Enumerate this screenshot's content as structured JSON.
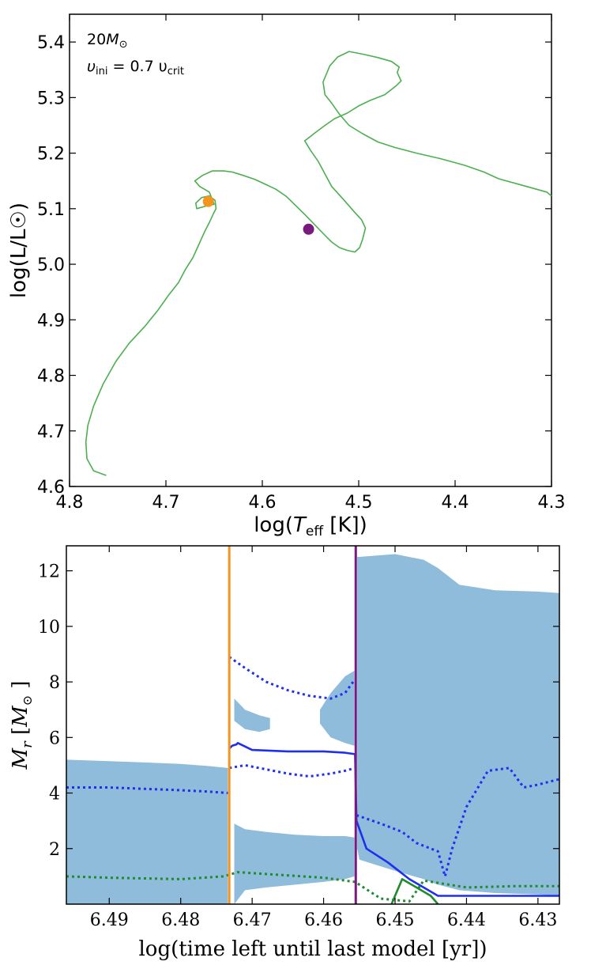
{
  "chart_data": [
    {
      "type": "line",
      "title": "",
      "annotation": {
        "mass": "20",
        "mass_unit": "M",
        "rotation_prefix": "υ",
        "rotation_sub": "ini",
        "rotation_mid": " = 0.7 υ",
        "rotation_sub2": "crit"
      },
      "xlabel": {
        "pre": "log(",
        "sym": "T",
        "sub": "eff",
        "post": " [K])"
      },
      "ylabel": "log(L/L☉)",
      "xlim": [
        4.8,
        4.3
      ],
      "ylim": [
        4.6,
        5.45
      ],
      "xticks": [
        4.8,
        4.7,
        4.6,
        4.5,
        4.4,
        4.3
      ],
      "xtick_labels": [
        "4.8",
        "4.7",
        "4.6",
        "4.5",
        "4.4",
        "4.3"
      ],
      "yticks": [
        4.6,
        4.7,
        4.8,
        4.9,
        5.0,
        5.1,
        5.2,
        5.3,
        5.4
      ],
      "ytick_labels": [
        "4.6",
        "4.7",
        "4.8",
        "4.9",
        "5.0",
        "5.1",
        "5.2",
        "5.3",
        "5.4"
      ],
      "series": [
        {
          "name": "track",
          "color": "#4caf50",
          "x": [
            4.762,
            4.775,
            4.782,
            4.783,
            4.781,
            4.775,
            4.765,
            4.752,
            4.738,
            4.722,
            4.708,
            4.697,
            4.687,
            4.68,
            4.672,
            4.666,
            4.66,
            4.655,
            4.651,
            4.648,
            4.649,
            4.655,
            4.663,
            4.669,
            4.668,
            4.66,
            4.65,
            4.655,
            4.665,
            4.67,
            4.662,
            4.652,
            4.64,
            4.631,
            4.62,
            4.608,
            4.597,
            4.586,
            4.575,
            4.565,
            4.555,
            4.545,
            4.535,
            4.528,
            4.52,
            4.512,
            4.504,
            4.499,
            4.496,
            4.493,
            4.497,
            4.505,
            4.515,
            4.528,
            4.542,
            4.55,
            4.556,
            4.545,
            4.535,
            4.525,
            4.512,
            4.5,
            4.488,
            4.473,
            4.462,
            4.456,
            4.46,
            4.458,
            4.466,
            4.48,
            4.495,
            4.51,
            4.522,
            4.53,
            4.537,
            4.535,
            4.528,
            4.52,
            4.51,
            4.496,
            4.48,
            4.462,
            4.44,
            4.415,
            4.39,
            4.37,
            4.355,
            4.33,
            4.305,
            4.3
          ],
          "y": [
            4.62,
            4.628,
            4.65,
            4.68,
            4.71,
            4.745,
            4.785,
            4.825,
            4.858,
            4.888,
            4.918,
            4.945,
            4.967,
            4.99,
            5.012,
            5.035,
            5.058,
            5.075,
            5.09,
            5.1,
            5.115,
            5.123,
            5.12,
            5.11,
            5.1,
            5.104,
            5.108,
            5.13,
            5.14,
            5.15,
            5.16,
            5.168,
            5.168,
            5.166,
            5.16,
            5.153,
            5.144,
            5.135,
            5.122,
            5.105,
            5.088,
            5.07,
            5.052,
            5.04,
            5.03,
            5.025,
            5.022,
            5.03,
            5.045,
            5.065,
            5.08,
            5.095,
            5.115,
            5.14,
            5.185,
            5.205,
            5.222,
            5.237,
            5.25,
            5.262,
            5.272,
            5.285,
            5.295,
            5.305,
            5.32,
            5.33,
            5.345,
            5.355,
            5.365,
            5.372,
            5.378,
            5.383,
            5.373,
            5.357,
            5.328,
            5.305,
            5.29,
            5.27,
            5.25,
            5.235,
            5.22,
            5.21,
            5.2,
            5.19,
            5.178,
            5.166,
            5.154,
            5.142,
            5.13,
            5.123
          ]
        }
      ],
      "markers": [
        {
          "name": "orange-marker",
          "x": 4.656,
          "y": 5.113,
          "color": "#f5941e"
        },
        {
          "name": "purple-marker",
          "x": 4.552,
          "y": 5.063,
          "color": "#7a1a7e"
        }
      ]
    },
    {
      "type": "area",
      "title": "",
      "xlabel": "log(time left until last model [yr])",
      "ylabel": {
        "sym": "M",
        "sub": "r",
        "unit_pre": " [",
        "unit_sym": "M",
        "unit_post": " ]"
      },
      "xlim": [
        6.496,
        6.427
      ],
      "ylim": [
        0,
        12.9
      ],
      "xticks": [
        6.49,
        6.48,
        6.47,
        6.46,
        6.45,
        6.44,
        6.43
      ],
      "xtick_labels": [
        "6.49",
        "6.48",
        "6.47",
        "6.46",
        "6.45",
        "6.44",
        "6.43"
      ],
      "yticks": [
        2,
        4,
        6,
        8,
        10,
        12
      ],
      "ytick_labels": [
        "2",
        "4",
        "6",
        "8",
        "10",
        "12"
      ],
      "convection_color": "#8fbcdb",
      "vlines": [
        {
          "name": "orange-vline",
          "x": 6.4732,
          "color": "#f5941e"
        },
        {
          "name": "purple-vline",
          "x": 6.4555,
          "color": "#7a1a7e"
        }
      ],
      "convective_zones": [
        {
          "name": "core-convection-early",
          "x": [
            6.496,
            6.49,
            6.485,
            6.48,
            6.476,
            6.4734
          ],
          "top": [
            5.2,
            5.15,
            5.1,
            5.05,
            4.97,
            4.9
          ],
          "bottom": [
            0,
            0,
            0,
            0,
            0,
            0
          ]
        },
        {
          "name": "shell-convection-mid",
          "x": [
            6.4725,
            6.471,
            6.468,
            6.464,
            6.46,
            6.457,
            6.4557
          ],
          "top": [
            2.9,
            2.7,
            2.6,
            2.5,
            2.45,
            2.45,
            2.4
          ],
          "bottom": [
            0,
            0.5,
            0.6,
            0.7,
            0.8,
            0.9,
            1.0
          ]
        },
        {
          "name": "envelope-convection-late",
          "x": [
            6.4553,
            6.455,
            6.45,
            6.446,
            6.444,
            6.441,
            6.436,
            6.43,
            6.427
          ],
          "top": [
            12.5,
            12.5,
            12.6,
            12.4,
            12.1,
            11.5,
            11.3,
            11.25,
            11.2
          ],
          "bottom": [
            2.0,
            1.6,
            1.2,
            0.9,
            0.7,
            0.5,
            0.4,
            0.35,
            0.3
          ]
        },
        {
          "name": "intermediate-convection",
          "x": [
            6.4725,
            6.471,
            6.469,
            6.4675
          ],
          "top": [
            7.4,
            7.0,
            6.8,
            6.7
          ],
          "bottom": [
            6.6,
            6.3,
            6.2,
            6.3
          ]
        },
        {
          "name": "pre-purple-convection",
          "x": [
            6.4605,
            6.459,
            6.457,
            6.4557
          ],
          "top": [
            7.0,
            7.6,
            8.2,
            8.4
          ],
          "bottom": [
            6.5,
            6.0,
            5.8,
            5.7
          ]
        }
      ],
      "lines": [
        {
          "name": "blue-solid",
          "color": "#1f2ff0",
          "style": "solid",
          "x": [
            6.4732,
            6.4728,
            6.4722,
            6.472,
            6.47,
            6.465,
            6.46,
            6.457,
            6.4556,
            6.4554,
            6.454,
            6.451,
            6.448,
            6.446,
            6.444,
            6.44,
            6.435,
            6.427
          ],
          "y": [
            5.6,
            5.7,
            5.75,
            5.8,
            5.55,
            5.5,
            5.5,
            5.45,
            5.4,
            3.0,
            2.0,
            1.5,
            0.9,
            0.6,
            0.3,
            0.3,
            0.3,
            0.3
          ]
        },
        {
          "name": "blue-dotted-upper",
          "color": "#1f2ff0",
          "style": "dotted",
          "x": [
            6.4732,
            6.471,
            6.468,
            6.465,
            6.462,
            6.459,
            6.457,
            6.4556
          ],
          "y": [
            8.9,
            8.5,
            8.0,
            7.7,
            7.5,
            7.4,
            7.6,
            8.1
          ]
        },
        {
          "name": "blue-dotted-lower",
          "color": "#1f2ff0",
          "style": "dotted",
          "x": [
            6.4732,
            6.471,
            6.468,
            6.465,
            6.462,
            6.459,
            6.457,
            6.4556
          ],
          "y": [
            4.9,
            5.0,
            4.85,
            4.7,
            4.6,
            4.7,
            4.8,
            4.9
          ]
        },
        {
          "name": "blue-dotted-left",
          "color": "#1f2ff0",
          "style": "dotted",
          "x": [
            6.496,
            6.49,
            6.485,
            6.48,
            6.476,
            6.4734
          ],
          "y": [
            4.2,
            4.2,
            4.15,
            4.1,
            4.05,
            4.0
          ]
        },
        {
          "name": "blue-dotted-right",
          "color": "#1f2ff0",
          "style": "dotted",
          "x": [
            6.4554,
            6.452,
            6.449,
            6.447,
            6.444,
            6.443,
            6.442,
            6.44,
            6.437,
            6.434,
            6.432,
            6.43,
            6.427
          ],
          "y": [
            3.2,
            2.9,
            2.6,
            2.2,
            1.9,
            1.0,
            2.0,
            3.5,
            4.8,
            4.9,
            4.2,
            4.3,
            4.5
          ]
        },
        {
          "name": "green-dotted",
          "color": "#1e8b2e",
          "style": "dotted",
          "x": [
            6.496,
            6.49,
            6.48,
            6.474,
            6.472,
            6.466,
            6.46,
            6.4556,
            6.452,
            6.448,
            6.446,
            6.44,
            6.433,
            6.427
          ],
          "y": [
            1.0,
            0.95,
            0.9,
            1.0,
            1.15,
            1.05,
            0.95,
            0.8,
            0.2,
            0.1,
            0.85,
            0.6,
            0.65,
            0.65
          ]
        },
        {
          "name": "green-solid",
          "color": "#1e8b2e",
          "style": "solid",
          "x": [
            6.4505,
            6.449,
            6.447,
            6.445,
            6.444
          ],
          "y": [
            0.0,
            0.9,
            0.6,
            0.3,
            0.0
          ]
        }
      ]
    }
  ]
}
